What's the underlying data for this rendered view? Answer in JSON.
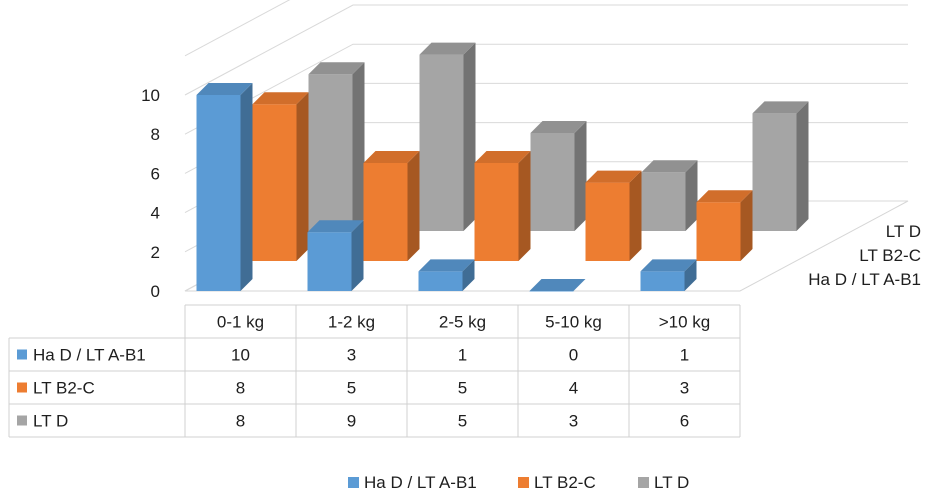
{
  "chart_data": {
    "type": "bar",
    "subtype": "3d-clustered-column-with-data-table",
    "categories": [
      "0-1 kg",
      "1-2 kg",
      "2-5 kg",
      "5-10 kg",
      ">10 kg"
    ],
    "series": [
      {
        "name": "Ha D / LT A-B1",
        "values": [
          10,
          3,
          1,
          0,
          1
        ],
        "color": "#5B9BD5"
      },
      {
        "name": "LT B2-C",
        "values": [
          8,
          5,
          5,
          4,
          3
        ],
        "color": "#ED7D31"
      },
      {
        "name": "LT D",
        "values": [
          8,
          9,
          5,
          3,
          6
        ],
        "color": "#A5A5A5"
      }
    ],
    "y_ticks": [
      "0",
      "2",
      "4",
      "6",
      "8",
      "10"
    ],
    "ylim": [
      0,
      10
    ],
    "grid": true,
    "legend_position": "bottom",
    "data_table": true
  }
}
